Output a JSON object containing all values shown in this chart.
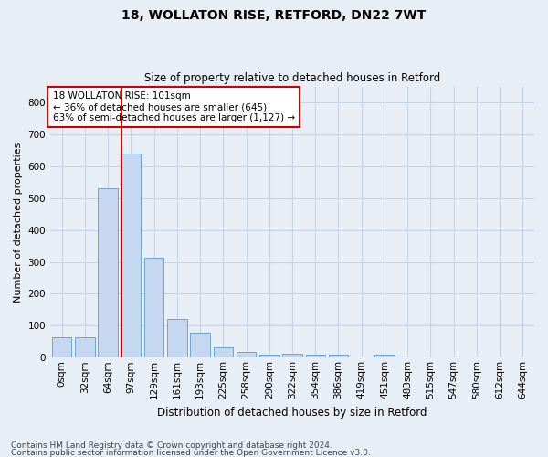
{
  "title1": "18, WOLLATON RISE, RETFORD, DN22 7WT",
  "title2": "Size of property relative to detached houses in Retford",
  "xlabel": "Distribution of detached houses by size in Retford",
  "ylabel": "Number of detached properties",
  "footer1": "Contains HM Land Registry data © Crown copyright and database right 2024.",
  "footer2": "Contains public sector information licensed under the Open Government Licence v3.0.",
  "annotation_line1": "18 WOLLATON RISE: 101sqm",
  "annotation_line2": "← 36% of detached houses are smaller (645)",
  "annotation_line3": "63% of semi-detached houses are larger (1,127) →",
  "bar_labels": [
    "0sqm",
    "32sqm",
    "64sqm",
    "97sqm",
    "129sqm",
    "161sqm",
    "193sqm",
    "225sqm",
    "258sqm",
    "290sqm",
    "322sqm",
    "354sqm",
    "386sqm",
    "419sqm",
    "451sqm",
    "483sqm",
    "515sqm",
    "547sqm",
    "580sqm",
    "612sqm",
    "644sqm"
  ],
  "bar_values": [
    65,
    65,
    530,
    640,
    312,
    120,
    78,
    31,
    17,
    10,
    12,
    10,
    10,
    0,
    10,
    0,
    0,
    0,
    0,
    0,
    0
  ],
  "bar_color": "#c5d8ef",
  "bar_edge_color": "#5b9bd5",
  "vline_color": "#cc0000",
  "annotation_box_color": "#cc0000",
  "grid_color": "#c8d4e4",
  "bg_color": "#e8eef6",
  "ylim": [
    0,
    850
  ],
  "yticks": [
    0,
    100,
    200,
    300,
    400,
    500,
    600,
    700,
    800
  ],
  "title1_fontsize": 10,
  "title2_fontsize": 8.5,
  "ylabel_fontsize": 8,
  "xlabel_fontsize": 8.5,
  "tick_fontsize": 7.5,
  "footer_fontsize": 6.5,
  "ann_fontsize": 7.5
}
